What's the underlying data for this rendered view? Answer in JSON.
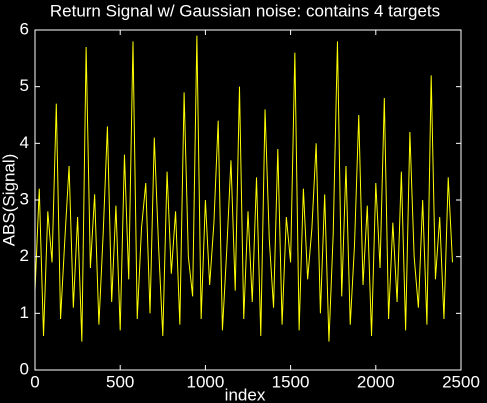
{
  "chart_data": {
    "type": "line",
    "title": "Return Signal w/ Gaussian noise: contains 4 targets",
    "x_label": "index",
    "y_label": "ABS(Signal)",
    "x": [
      0,
      25,
      50,
      75,
      100,
      125,
      150,
      175,
      200,
      225,
      250,
      275,
      300,
      325,
      350,
      375,
      400,
      425,
      450,
      475,
      500,
      525,
      550,
      575,
      600,
      625,
      650,
      675,
      700,
      725,
      750,
      775,
      800,
      825,
      850,
      875,
      900,
      925,
      950,
      975,
      1000,
      1025,
      1050,
      1075,
      1100,
      1125,
      1150,
      1175,
      1200,
      1225,
      1250,
      1275,
      1300,
      1325,
      1350,
      1375,
      1400,
      1425,
      1450,
      1475,
      1500,
      1525,
      1550,
      1575,
      1600,
      1625,
      1650,
      1675,
      1700,
      1725,
      1750,
      1775,
      1800,
      1825,
      1850,
      1875,
      1900,
      1925,
      1950,
      1975,
      2000,
      2025,
      2050,
      2075,
      2100,
      2125,
      2150,
      2175,
      2200,
      2225,
      2250,
      2275,
      2300,
      2325,
      2350,
      2375,
      2400,
      2425,
      2450
    ],
    "series": [
      {
        "name": "signal",
        "color": "#ffff00",
        "values": [
          1.4,
          3.2,
          0.6,
          2.8,
          1.9,
          4.7,
          0.9,
          2.3,
          3.6,
          1.1,
          2.7,
          0.5,
          5.7,
          1.8,
          3.1,
          0.8,
          2.4,
          4.3,
          1.2,
          2.9,
          0.7,
          3.8,
          1.6,
          5.8,
          0.9,
          2.5,
          3.3,
          1.0,
          4.1,
          2.2,
          0.6,
          3.5,
          1.7,
          2.8,
          0.8,
          4.9,
          2.0,
          1.3,
          5.9,
          0.9,
          3.0,
          1.5,
          2.6,
          4.4,
          0.7,
          2.1,
          3.7,
          1.4,
          5.0,
          0.9,
          2.8,
          1.2,
          3.4,
          0.6,
          4.6,
          2.3,
          1.1,
          3.9,
          0.8,
          2.7,
          1.9,
          5.6,
          0.7,
          3.2,
          1.6,
          2.5,
          4.0,
          1.0,
          3.1,
          0.5,
          2.4,
          5.8,
          1.3,
          3.6,
          0.8,
          2.2,
          4.5,
          1.5,
          2.9,
          0.6,
          3.3,
          1.8,
          4.8,
          0.9,
          2.6,
          1.2,
          3.5,
          0.7,
          4.2,
          2.0,
          1.1,
          3.0,
          0.8,
          5.2,
          1.6,
          2.7,
          0.9,
          3.4,
          1.9
        ]
      }
    ],
    "xlim": [
      0,
      2500
    ],
    "xticks": [
      0,
      500,
      1000,
      1500,
      2000,
      2500
    ],
    "ylim": [
      0,
      6
    ],
    "yticks": [
      0,
      1,
      2,
      3,
      4,
      5,
      6
    ],
    "grid": false
  }
}
